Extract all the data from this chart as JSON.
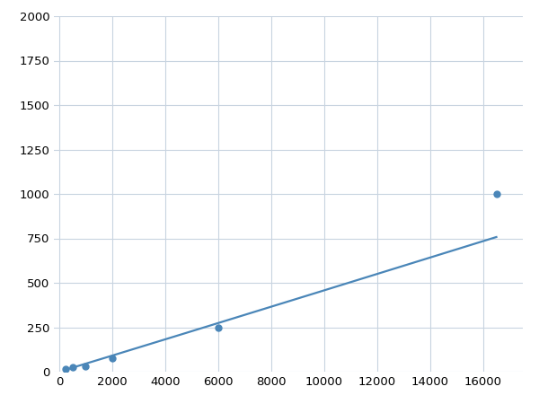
{
  "x": [
    250,
    500,
    1000,
    2000,
    6000,
    16500
  ],
  "y": [
    15,
    25,
    30,
    75,
    250,
    1000
  ],
  "line_color": "#4a86b8",
  "marker_color": "#4a86b8",
  "marker_size": 5,
  "line_width": 1.6,
  "xlim": [
    -200,
    17500
  ],
  "ylim": [
    0,
    2000
  ],
  "xticks": [
    0,
    2000,
    4000,
    6000,
    8000,
    10000,
    12000,
    14000,
    16000
  ],
  "yticks": [
    0,
    250,
    500,
    750,
    1000,
    1250,
    1500,
    1750,
    2000
  ],
  "grid_color": "#c8d4e0",
  "background_color": "#ffffff",
  "tick_fontsize": 9.5,
  "figsize": [
    6.0,
    4.5
  ],
  "dpi": 100
}
